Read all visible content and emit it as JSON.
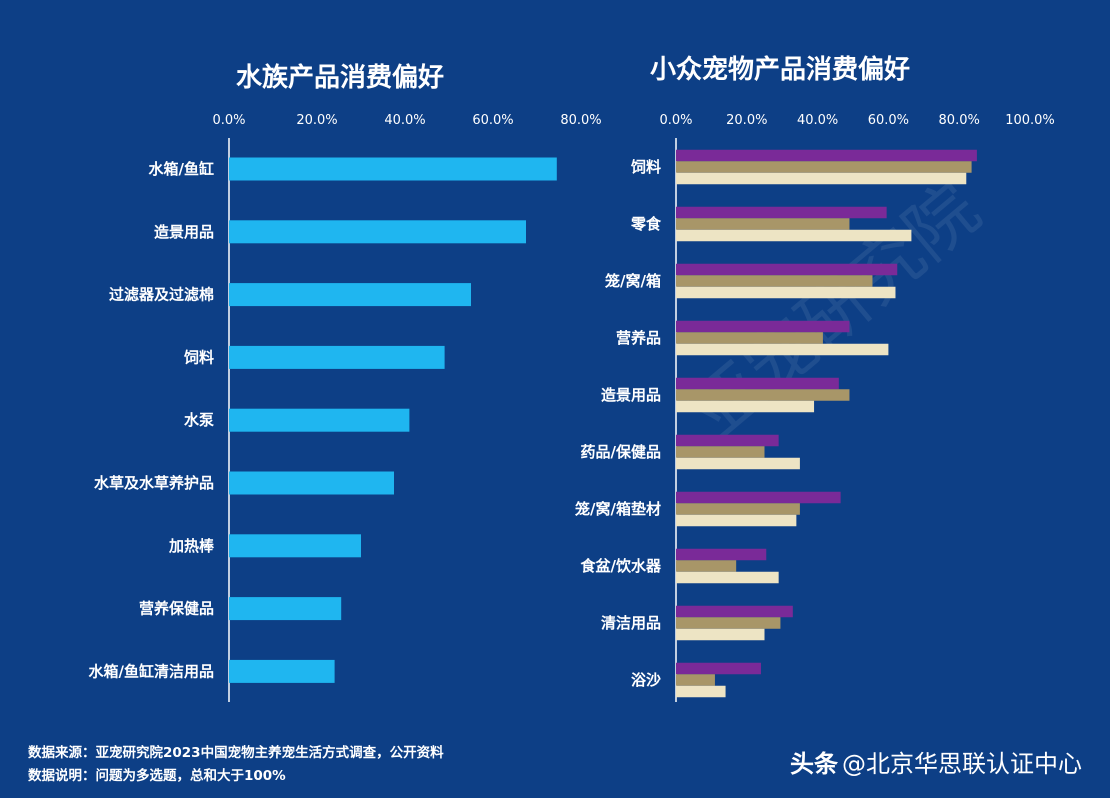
{
  "chart_data": [
    {
      "type": "bar",
      "orientation": "horizontal",
      "title": "水族产品消费偏好",
      "xlim": [
        0,
        80
      ],
      "tick_labels": [
        "0.0%",
        "20.0%",
        "40.0%",
        "60.0%",
        "80.0%"
      ],
      "categories": [
        "水箱/鱼缸",
        "造景用品",
        "过滤器及过滤棉",
        "饲料",
        "水泵",
        "水草及水草养护品",
        "加热棒",
        "营养保健品",
        "水箱/鱼缸清洁用品"
      ],
      "series": [
        {
          "color": "#1fb6f0",
          "values": [
            74.5,
            67.5,
            55.0,
            49.0,
            41.0,
            37.5,
            30.0,
            25.5,
            24.0
          ]
        }
      ]
    },
    {
      "type": "bar",
      "orientation": "horizontal",
      "title": "小众宠物产品消费偏好",
      "xlim": [
        0,
        100
      ],
      "tick_labels": [
        "0.0%",
        "20.0%",
        "40.0%",
        "60.0%",
        "80.0%",
        "100.0%"
      ],
      "categories": [
        "饲料",
        "零食",
        "笼/窝/箱",
        "营养品",
        "造景用品",
        "药品/保健品",
        "笼/窝/箱垫材",
        "食盆/饮水器",
        "清洁用品",
        "浴沙"
      ],
      "series": [
        {
          "color": "#7a2a98",
          "values": [
            85.0,
            59.5,
            62.5,
            49.0,
            46.0,
            29.0,
            46.5,
            25.5,
            33.0,
            24.0
          ]
        },
        {
          "color": "#a89668",
          "values": [
            83.5,
            49.0,
            55.5,
            41.5,
            49.0,
            25.0,
            35.0,
            17.0,
            29.5,
            11.0
          ]
        },
        {
          "color": "#ede4c4",
          "values": [
            82.0,
            66.5,
            62.0,
            60.0,
            39.0,
            35.0,
            34.0,
            29.0,
            25.0,
            14.0
          ]
        }
      ]
    }
  ],
  "footer": {
    "source": "数据来源：亚宠研究院2023中国宠物主养宠生活方式调查，公开资料",
    "note": "数据说明：问题为多选题，总和大于100%"
  },
  "watermark": {
    "brand": "头条",
    "handle": "@北京华思联认证中心",
    "diagonal": "亚宠研究院"
  }
}
